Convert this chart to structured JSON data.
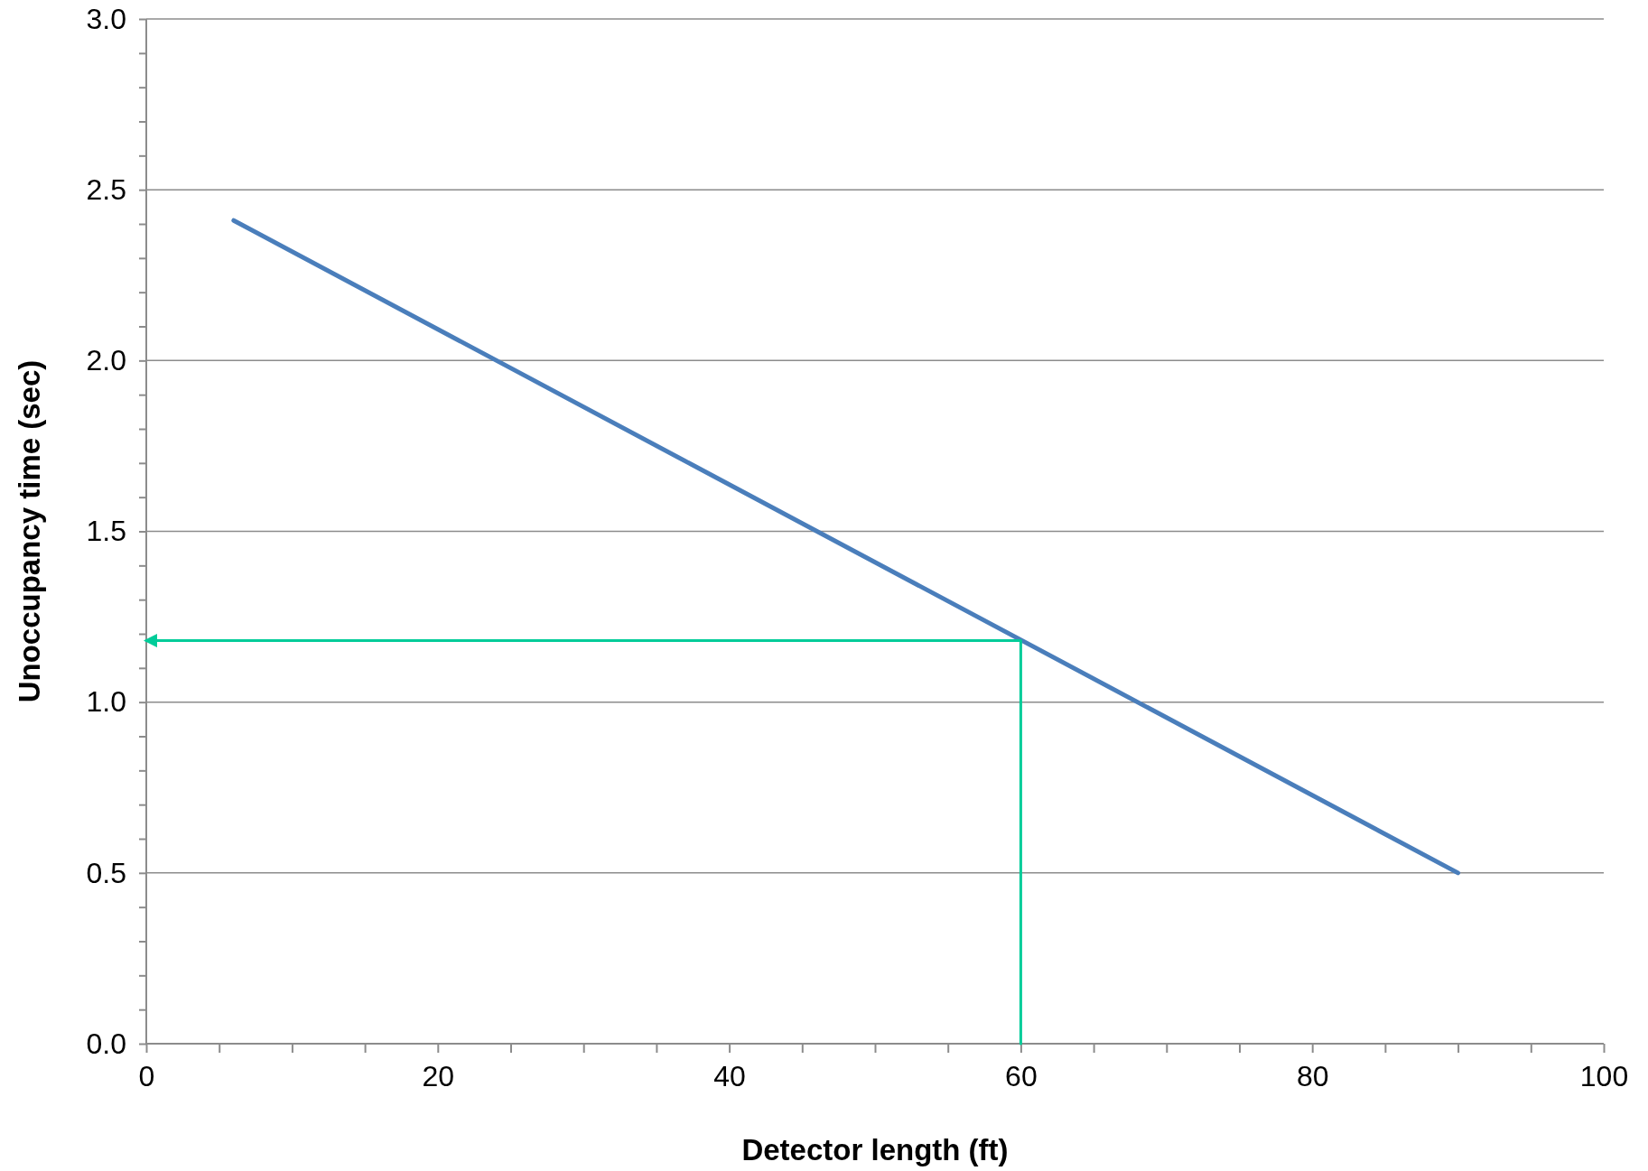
{
  "chart_data": {
    "type": "line",
    "xlabel": "Detector length (ft)",
    "ylabel": "Unoccupancy time (sec)",
    "xlim": [
      0,
      100
    ],
    "ylim": [
      0,
      3
    ],
    "xticks": [
      0,
      {
        "value": 5,
        "label": null
      },
      {
        "value": 10,
        "label": null
      },
      {
        "value": 15,
        "label": null
      },
      20,
      {
        "value": 25,
        "label": null
      },
      {
        "value": 30,
        "label": null
      },
      {
        "value": 35,
        "label": null
      },
      40,
      {
        "value": 45,
        "label": null
      },
      {
        "value": 50,
        "label": null
      },
      {
        "value": 55,
        "label": null
      },
      60,
      {
        "value": 65,
        "label": null
      },
      {
        "value": 70,
        "label": null
      },
      {
        "value": 75,
        "label": null
      },
      80,
      {
        "value": 85,
        "label": null
      },
      {
        "value": 90,
        "label": null
      },
      {
        "value": 95,
        "label": null
      },
      100
    ],
    "yticks": [
      {
        "value": 0,
        "label": "0.0"
      },
      {
        "value": 0.1,
        "label": null
      },
      {
        "value": 0.2,
        "label": null
      },
      {
        "value": 0.3,
        "label": null
      },
      {
        "value": 0.4,
        "label": null
      },
      0.5,
      {
        "value": 0.6,
        "label": null
      },
      {
        "value": 0.7,
        "label": null
      },
      {
        "value": 0.8,
        "label": null
      },
      {
        "value": 0.9,
        "label": null
      },
      {
        "value": 1,
        "label": "1.0"
      },
      {
        "value": 1.1,
        "label": null
      },
      {
        "value": 1.2,
        "label": null
      },
      {
        "value": 1.3,
        "label": null
      },
      {
        "value": 1.4,
        "label": null
      },
      1.5,
      {
        "value": 1.6,
        "label": null
      },
      {
        "value": 1.7,
        "label": null
      },
      {
        "value": 1.8,
        "label": null
      },
      {
        "value": 1.9,
        "label": null
      },
      {
        "value": 2,
        "label": "2.0"
      },
      {
        "value": 2.1,
        "label": null
      },
      {
        "value": 2.2,
        "label": null
      },
      {
        "value": 2.3,
        "label": null
      },
      {
        "value": 2.4,
        "label": null
      },
      2.5,
      {
        "value": 2.6,
        "label": null
      },
      {
        "value": 2.7,
        "label": null
      },
      {
        "value": 2.8,
        "label": null
      },
      {
        "value": 2.9,
        "label": null
      },
      {
        "value": 3,
        "label": "3.0"
      }
    ],
    "grid": "y",
    "marker": "none",
    "line_style": "solid",
    "series": [
      {
        "color": "#4a7ebb",
        "x": [
          6,
          90
        ],
        "values": [
          2.41,
          0.5
        ]
      },
      {
        "color": "#00cc99",
        "x": [
          60,
          60,
          0
        ],
        "values": [
          0,
          1.18,
          1.18
        ]
      }
    ]
  }
}
